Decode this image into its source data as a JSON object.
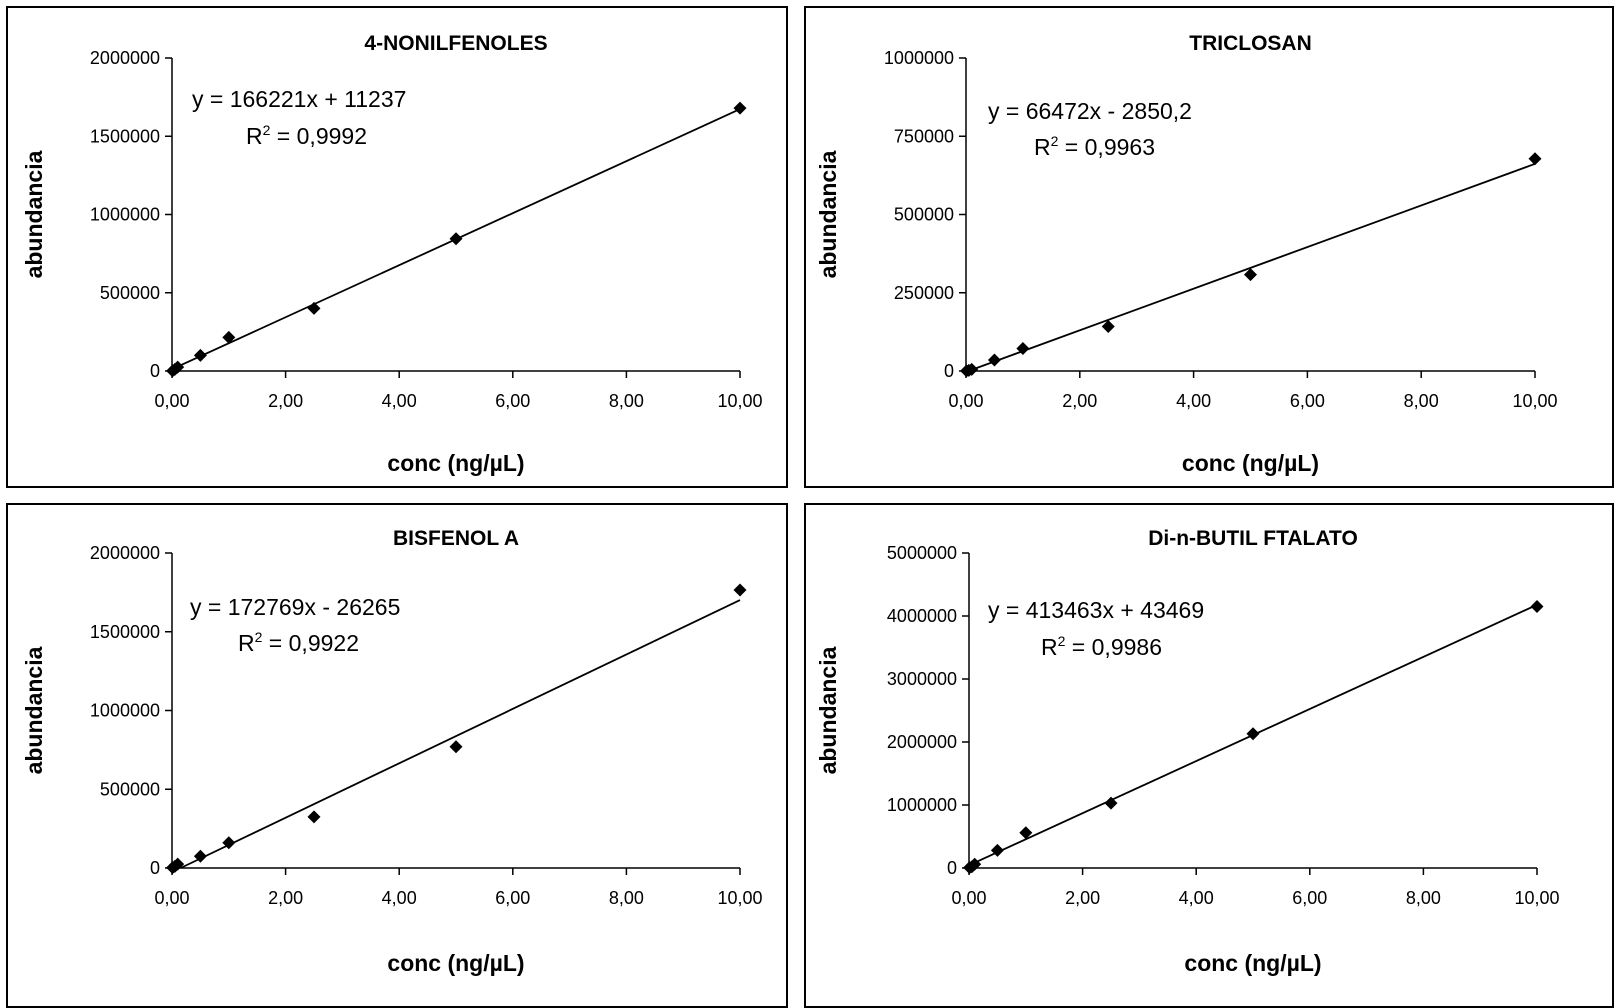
{
  "chart_data": [
    {
      "type": "scatter",
      "title": "4-NONILFENOLES",
      "xlabel": "conc (ng/µL)",
      "ylabel": "abundancia",
      "xlim": [
        0,
        10
      ],
      "ylim": [
        0,
        2000000
      ],
      "x_ticks": [
        "0,00",
        "2,00",
        "4,00",
        "6,00",
        "8,00",
        "10,00"
      ],
      "y_ticks": [
        "0",
        "500000",
        "1000000",
        "1500000",
        "2000000"
      ],
      "series": [
        {
          "x": [
            0.01,
            0.05,
            0.1,
            0.5,
            1,
            2.5,
            5,
            10
          ],
          "y": [
            1000,
            10000,
            25000,
            100000,
            215000,
            400000,
            845000,
            1680000
          ]
        }
      ],
      "trendline": {
        "slope": 166221,
        "intercept": 11237
      },
      "equation": "y = 166221x + 11237",
      "r2_prefix": "R",
      "r2_exp": "2",
      "r2_value": " = 0,9992",
      "grid": false
    },
    {
      "type": "scatter",
      "title": "TRICLOSAN",
      "xlabel": "conc (ng/µL)",
      "ylabel": "abundancia",
      "xlim": [
        0,
        10
      ],
      "ylim": [
        0,
        1000000
      ],
      "x_ticks": [
        "0,00",
        "2,00",
        "4,00",
        "6,00",
        "8,00",
        "10,00"
      ],
      "y_ticks": [
        "0",
        "250000",
        "500000",
        "750000",
        "1000000"
      ],
      "series": [
        {
          "x": [
            0.01,
            0.05,
            0.1,
            0.5,
            1,
            2.5,
            5,
            10
          ],
          "y": [
            500,
            2000,
            5000,
            35000,
            72000,
            142000,
            308000,
            678000
          ]
        }
      ],
      "trendline": {
        "slope": 66472,
        "intercept": -2850.2
      },
      "equation": "y = 66472x - 2850,2",
      "r2_prefix": "R",
      "r2_exp": "2",
      "r2_value": " = 0,9963",
      "grid": false
    },
    {
      "type": "scatter",
      "title": "BISFENOL A",
      "xlabel": "conc (ng/µL)",
      "ylabel": "abundancia",
      "xlim": [
        0,
        10
      ],
      "ylim": [
        0,
        2000000
      ],
      "x_ticks": [
        "0,00",
        "2,00",
        "4,00",
        "6,00",
        "8,00",
        "10,00"
      ],
      "y_ticks": [
        "0",
        "500000",
        "1000000",
        "1500000",
        "2000000"
      ],
      "series": [
        {
          "x": [
            0.01,
            0.05,
            0.1,
            0.5,
            1,
            2.5,
            5,
            10
          ],
          "y": [
            2000,
            10000,
            25000,
            75000,
            160000,
            325000,
            770000,
            1765000
          ]
        }
      ],
      "trendline": {
        "slope": 172769,
        "intercept": -26265
      },
      "equation": "y = 172769x - 26265",
      "r2_prefix": "R",
      "r2_exp": "2",
      "r2_value": " = 0,9922",
      "grid": false
    },
    {
      "type": "scatter",
      "title": "Di-n-BUTIL FTALATO",
      "xlabel": "conc (ng/µL)",
      "ylabel": "abundancia",
      "xlim": [
        0,
        10
      ],
      "ylim": [
        0,
        5000000
      ],
      "x_ticks": [
        "0,00",
        "2,00",
        "4,00",
        "6,00",
        "8,00",
        "10,00"
      ],
      "y_ticks": [
        "0",
        "1000000",
        "2000000",
        "3000000",
        "4000000",
        "5000000"
      ],
      "series": [
        {
          "x": [
            0.01,
            0.05,
            0.1,
            0.5,
            1,
            2.5,
            5,
            10
          ],
          "y": [
            5000,
            20000,
            60000,
            280000,
            560000,
            1030000,
            2130000,
            4150000
          ]
        }
      ],
      "trendline": {
        "slope": 413463,
        "intercept": 43469
      },
      "equation": "y = 413463x + 43469",
      "r2_prefix": "R",
      "r2_exp": "2",
      "r2_value": " = 0,9986",
      "grid": false
    }
  ]
}
